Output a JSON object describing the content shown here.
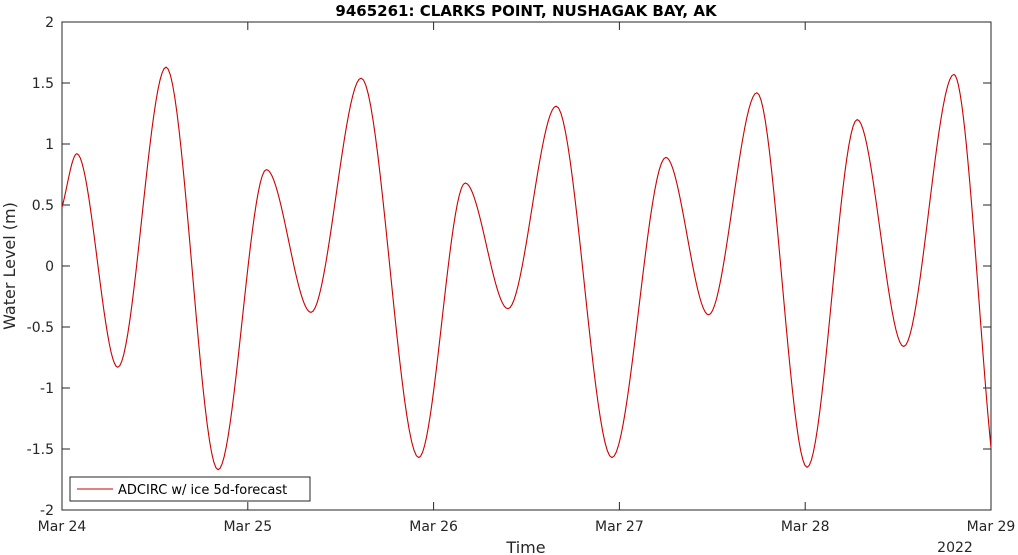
{
  "chart_data": {
    "type": "line",
    "title": "9465261: CLARKS POINT, NUSHAGAK BAY, AK",
    "xlabel": "Time",
    "ylabel": "Water Level (m)",
    "x_year_label": "2022",
    "xlim": [
      0,
      5
    ],
    "ylim": [
      -2,
      2
    ],
    "x_ticks": [
      {
        "value": 0,
        "label": "Mar 24"
      },
      {
        "value": 1,
        "label": "Mar 25"
      },
      {
        "value": 2,
        "label": "Mar 26"
      },
      {
        "value": 3,
        "label": "Mar 27"
      },
      {
        "value": 4,
        "label": "Mar 28"
      },
      {
        "value": 5,
        "label": "Mar 29"
      }
    ],
    "y_ticks": [
      {
        "value": 2,
        "label": "2"
      },
      {
        "value": 1.5,
        "label": "1.5"
      },
      {
        "value": 1,
        "label": "1"
      },
      {
        "value": 0.5,
        "label": "0.5"
      },
      {
        "value": 0,
        "label": "0"
      },
      {
        "value": -0.5,
        "label": "-0.5"
      },
      {
        "value": -1,
        "label": "-1"
      },
      {
        "value": -1.5,
        "label": "-1.5"
      },
      {
        "value": -2,
        "label": "-2"
      }
    ],
    "grid": false,
    "legend_position": "bottom-left",
    "series": [
      {
        "name": "ADCIRC w/ ice 5d-forecast",
        "color": "#cc0000",
        "points": [
          [
            0.0,
            0.48
          ],
          [
            0.08,
            0.92
          ],
          [
            0.3,
            -0.83
          ],
          [
            0.56,
            1.63
          ],
          [
            0.84,
            -1.67
          ],
          [
            1.1,
            0.79
          ],
          [
            1.34,
            -0.38
          ],
          [
            1.61,
            1.54
          ],
          [
            1.92,
            -1.57
          ],
          [
            2.17,
            0.68
          ],
          [
            2.4,
            -0.35
          ],
          [
            2.66,
            1.31
          ],
          [
            2.96,
            -1.57
          ],
          [
            3.25,
            0.89
          ],
          [
            3.48,
            -0.4
          ],
          [
            3.74,
            1.42
          ],
          [
            4.01,
            -1.65
          ],
          [
            4.28,
            1.2
          ],
          [
            4.53,
            -0.66
          ],
          [
            4.8,
            1.57
          ],
          [
            5.0,
            -1.49
          ]
        ]
      }
    ]
  },
  "colors": {
    "axis": "#262626",
    "series": "#cc0000"
  }
}
